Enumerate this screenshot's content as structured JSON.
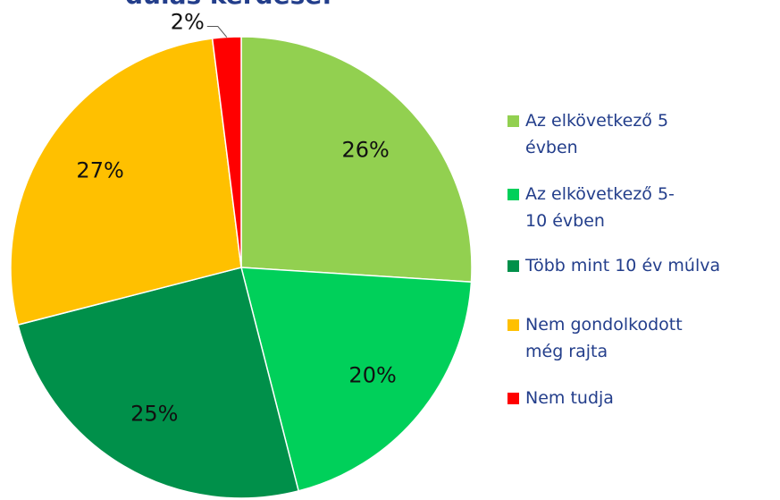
{
  "chart_data": {
    "type": "pie",
    "title": "dulás kérdése:",
    "categories": [
      "Az elkövetkező 5 évben",
      "Az elkövetkező 5-10 évben",
      "Több mint 10 év múlva",
      "Nem gondolkodott még rajta",
      "Nem tudja"
    ],
    "values": [
      26,
      20,
      25,
      27,
      2
    ],
    "value_labels": [
      "26%",
      "20%",
      "25%",
      "27%",
      "2%"
    ],
    "colors": [
      "#92d050",
      "#00d05a",
      "#00904a",
      "#ffc000",
      "#ff0000"
    ],
    "legend": "right"
  }
}
